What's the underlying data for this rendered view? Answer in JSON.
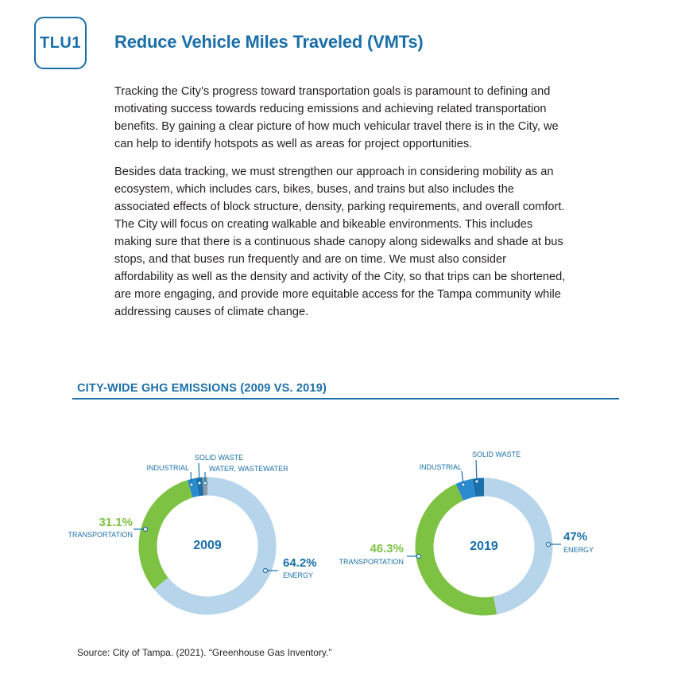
{
  "badge": "TLU1",
  "title": "Reduce Vehicle Miles Traveled (VMTs)",
  "paragraphs": [
    "Tracking the City’s progress toward transportation goals is paramount to defining and motivating success towards reducing emissions and achieving related transportation benefits. By gaining a clear picture of how much vehicular travel there is in the City, we can help to identify hotspots as well as areas for project opportunities.",
    "Besides data tracking, we must strengthen our approach in considering mobility as an ecosystem, which includes cars, bikes, buses, and trains but also includes the associated effects of block structure, density, parking requirements, and overall comfort. The City will focus on creating walkable and bikeable environments. This includes making sure that there is a continuous shade canopy along sidewalks and shade at bus stops, and that buses run frequently and are on time. We must also consider affordability as well as the density and activity of the City, so that trips can be shortened, are more engaging, and provide more equitable access for the Tampa community while addressing causes of climate change."
  ],
  "section_title": "CITY-WIDE GHG EMISSIONS (2009 VS. 2019)",
  "source": "Source: City of Tampa. (2021). “Greenhouse Gas Inventory.”",
  "colors": {
    "energy": "#b7d5ea",
    "transportation": "#7dc243",
    "industrial": "#2a8bd0",
    "solid_waste": "#1a6fa8",
    "water": "#8a9aa6",
    "accent": "#1a6fa8"
  },
  "chart_data": [
    {
      "type": "pie",
      "title": "2009",
      "labels": [
        "ENERGY",
        "TRANSPORTATION",
        "INDUSTRIAL",
        "SOLID WASTE",
        "WATER, WASTEWATER"
      ],
      "values": [
        64.2,
        31.1,
        2.0,
        1.5,
        1.2
      ],
      "value_labels": [
        "64.2%",
        "31.1%",
        "",
        "",
        ""
      ]
    },
    {
      "type": "pie",
      "title": "2019",
      "labels": [
        "ENERGY",
        "TRANSPORTATION",
        "INDUSTRIAL",
        "SOLID WASTE"
      ],
      "values": [
        47,
        46.3,
        4.0,
        2.7
      ],
      "value_labels": [
        "47%",
        "46.3%",
        "",
        ""
      ]
    }
  ]
}
